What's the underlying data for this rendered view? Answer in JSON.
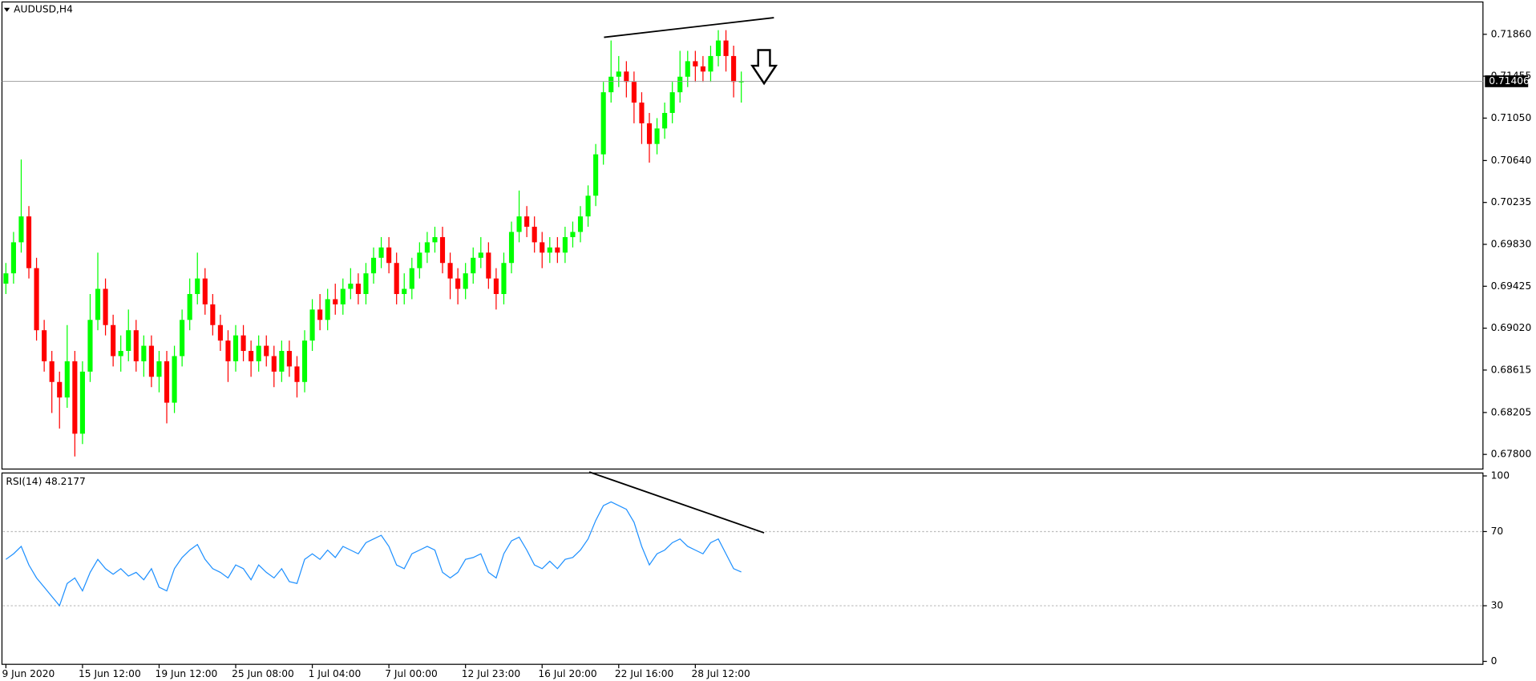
{
  "chart_data": [
    {
      "type": "candlestick",
      "title": "AUDUSD,H4",
      "up_color": "#00ff00",
      "down_color": "#ff0000",
      "categories": [
        "9 Jun 2020",
        null,
        null,
        null,
        null,
        null,
        null,
        null,
        null,
        null,
        "15 Jun 12:00",
        null,
        null,
        null,
        null,
        null,
        null,
        null,
        null,
        null,
        "19 Jun 12:00",
        null,
        null,
        null,
        null,
        null,
        null,
        null,
        null,
        null,
        "25 Jun 08:00",
        null,
        null,
        null,
        null,
        null,
        null,
        null,
        null,
        null,
        "1 Jul 04:00",
        null,
        null,
        null,
        null,
        null,
        null,
        null,
        null,
        null,
        "7 Jul 00:00",
        null,
        null,
        null,
        null,
        null,
        null,
        null,
        null,
        null,
        "12 Jul 23:00",
        null,
        null,
        null,
        null,
        null,
        null,
        null,
        null,
        null,
        "16 Jul 20:00",
        null,
        null,
        null,
        null,
        null,
        null,
        null,
        null,
        null,
        "22 Jul 16:00",
        null,
        null,
        null,
        null,
        null,
        null,
        null,
        null,
        null,
        "28 Jul 12:00",
        null,
        null,
        null,
        null,
        null,
        null
      ],
      "open": [
        0.6945,
        0.6955,
        0.6985,
        0.701,
        0.696,
        0.69,
        0.687,
        0.685,
        0.6835,
        0.687,
        0.68,
        0.686,
        0.691,
        0.694,
        0.6905,
        0.6875,
        0.688,
        0.69,
        0.687,
        0.6885,
        0.6855,
        0.687,
        0.683,
        0.6875,
        0.691,
        0.6935,
        0.695,
        0.6925,
        0.6905,
        0.689,
        0.687,
        0.6895,
        0.688,
        0.687,
        0.6885,
        0.6875,
        0.686,
        0.688,
        0.6865,
        0.685,
        0.689,
        0.692,
        0.691,
        0.693,
        0.6925,
        0.694,
        0.6945,
        0.6935,
        0.6955,
        0.697,
        0.698,
        0.6965,
        0.6935,
        0.694,
        0.696,
        0.6975,
        0.6985,
        0.699,
        0.6965,
        0.695,
        0.694,
        0.6955,
        0.697,
        0.6975,
        0.695,
        0.6935,
        0.6965,
        0.6995,
        0.701,
        0.7,
        0.6985,
        0.6975,
        0.698,
        0.6975,
        0.699,
        0.6995,
        0.701,
        0.703,
        0.707,
        0.713,
        0.7145,
        0.715,
        0.714,
        0.712,
        0.71,
        0.708,
        0.7095,
        0.711,
        0.713,
        0.7145,
        0.716,
        0.7155,
        0.715,
        0.7165,
        0.718,
        0.7165,
        0.714
      ],
      "high": [
        0.6965,
        0.6995,
        0.7065,
        0.702,
        0.697,
        0.691,
        0.688,
        0.686,
        0.6905,
        0.688,
        0.687,
        0.6935,
        0.6975,
        0.695,
        0.6915,
        0.6895,
        0.692,
        0.691,
        0.6895,
        0.6895,
        0.688,
        0.688,
        0.6885,
        0.692,
        0.695,
        0.6975,
        0.696,
        0.6935,
        0.6915,
        0.69,
        0.6905,
        0.6905,
        0.689,
        0.6895,
        0.6895,
        0.6885,
        0.689,
        0.689,
        0.6875,
        0.69,
        0.693,
        0.6935,
        0.694,
        0.6945,
        0.695,
        0.696,
        0.6955,
        0.6965,
        0.698,
        0.699,
        0.699,
        0.6975,
        0.6955,
        0.697,
        0.6985,
        0.6995,
        0.7,
        0.7,
        0.6975,
        0.696,
        0.6965,
        0.698,
        0.699,
        0.6985,
        0.696,
        0.6975,
        0.7005,
        0.7035,
        0.702,
        0.701,
        0.6995,
        0.699,
        0.699,
        0.7,
        0.7005,
        0.702,
        0.704,
        0.708,
        0.714,
        0.718,
        0.7165,
        0.716,
        0.715,
        0.713,
        0.711,
        0.7105,
        0.712,
        0.714,
        0.717,
        0.717,
        0.717,
        0.7165,
        0.7175,
        0.719,
        0.719,
        0.7175,
        0.715
      ],
      "low": [
        0.6935,
        0.6945,
        0.6975,
        0.695,
        0.689,
        0.686,
        0.682,
        0.6805,
        0.6825,
        0.6778,
        0.679,
        0.685,
        0.69,
        0.6895,
        0.6865,
        0.686,
        0.687,
        0.686,
        0.6855,
        0.6845,
        0.684,
        0.681,
        0.682,
        0.6865,
        0.69,
        0.6925,
        0.6915,
        0.6895,
        0.688,
        0.685,
        0.686,
        0.687,
        0.6855,
        0.686,
        0.6865,
        0.6845,
        0.685,
        0.6855,
        0.6835,
        0.684,
        0.688,
        0.69,
        0.69,
        0.6915,
        0.6915,
        0.693,
        0.6925,
        0.6925,
        0.6945,
        0.696,
        0.6955,
        0.6925,
        0.6925,
        0.693,
        0.695,
        0.6965,
        0.6975,
        0.6955,
        0.693,
        0.6925,
        0.693,
        0.6945,
        0.696,
        0.694,
        0.692,
        0.6925,
        0.6955,
        0.6985,
        0.699,
        0.6975,
        0.696,
        0.6965,
        0.6965,
        0.6965,
        0.698,
        0.6985,
        0.7,
        0.702,
        0.706,
        0.712,
        0.7135,
        0.7125,
        0.71,
        0.708,
        0.7062,
        0.707,
        0.7085,
        0.71,
        0.712,
        0.7135,
        0.714,
        0.714,
        0.714,
        0.7155,
        0.715,
        0.7125,
        0.712
      ],
      "close": [
        0.6955,
        0.6985,
        0.701,
        0.696,
        0.69,
        0.687,
        0.685,
        0.6835,
        0.687,
        0.68,
        0.686,
        0.691,
        0.694,
        0.6905,
        0.6875,
        0.688,
        0.69,
        0.687,
        0.6885,
        0.6855,
        0.687,
        0.683,
        0.6875,
        0.691,
        0.6935,
        0.695,
        0.6925,
        0.6905,
        0.689,
        0.687,
        0.6895,
        0.688,
        0.687,
        0.6885,
        0.6875,
        0.686,
        0.688,
        0.6865,
        0.685,
        0.689,
        0.692,
        0.691,
        0.693,
        0.6925,
        0.694,
        0.6945,
        0.6935,
        0.6955,
        0.697,
        0.698,
        0.6965,
        0.6935,
        0.694,
        0.696,
        0.6975,
        0.6985,
        0.699,
        0.6965,
        0.695,
        0.694,
        0.6955,
        0.697,
        0.6975,
        0.695,
        0.6935,
        0.6965,
        0.6995,
        0.701,
        0.7,
        0.6985,
        0.6975,
        0.698,
        0.6975,
        0.699,
        0.6995,
        0.701,
        0.703,
        0.707,
        0.713,
        0.7145,
        0.715,
        0.714,
        0.712,
        0.71,
        0.708,
        0.7095,
        0.711,
        0.713,
        0.7145,
        0.716,
        0.7155,
        0.715,
        0.7165,
        0.718,
        0.7165,
        0.714,
        0.71406
      ],
      "last_price": 0.71406,
      "ylim": [
        0.67668,
        0.72163
      ],
      "yticks": [
        {
          "value": 0.678,
          "label": "0.67800"
        },
        {
          "value": 0.68205,
          "label": "0.68205"
        },
        {
          "value": 0.68615,
          "label": "0.68615"
        },
        {
          "value": 0.6902,
          "label": "0.69020"
        },
        {
          "value": 0.69425,
          "label": "0.69425"
        },
        {
          "value": 0.6983,
          "label": "0.69830"
        },
        {
          "value": 0.70235,
          "label": "0.70235"
        },
        {
          "value": 0.7064,
          "label": "0.70640"
        },
        {
          "value": 0.7105,
          "label": "0.71050"
        },
        {
          "value": 0.71455,
          "label": "0.71455"
        },
        {
          "value": 0.7186,
          "label": "0.71860"
        }
      ]
    },
    {
      "type": "line",
      "title": "RSI(14) 48.2177",
      "color": "#1e90ff",
      "values": [
        55,
        58,
        62,
        52,
        45,
        40,
        35,
        30,
        42,
        45,
        38,
        48,
        55,
        50,
        47,
        50,
        46,
        48,
        44,
        50,
        40,
        38,
        50,
        56,
        60,
        63,
        55,
        50,
        48,
        45,
        52,
        50,
        44,
        52,
        48,
        45,
        50,
        43,
        42,
        55,
        58,
        55,
        60,
        56,
        62,
        60,
        58,
        64,
        66,
        68,
        62,
        52,
        50,
        58,
        60,
        62,
        60,
        48,
        45,
        48,
        55,
        56,
        58,
        48,
        45,
        58,
        65,
        67,
        60,
        52,
        50,
        54,
        50,
        55,
        56,
        60,
        66,
        76,
        84,
        86,
        84,
        82,
        75,
        62,
        52,
        58,
        60,
        64,
        66,
        62,
        60,
        58,
        64,
        66,
        58,
        50,
        48.2177
      ],
      "ylim": [
        0,
        100
      ],
      "yticks": [
        0,
        30,
        70,
        100
      ],
      "level_lines": [
        30,
        70
      ]
    }
  ]
}
